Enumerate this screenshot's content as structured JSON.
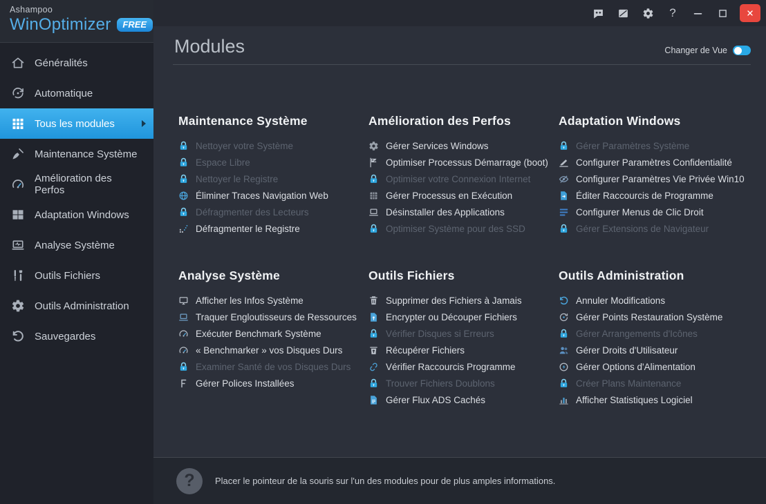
{
  "brand": {
    "company": "Ashampoo",
    "product": "WinOptimizer",
    "badge": "FREE"
  },
  "titlebar": {
    "feedback_icon": "feedback-icon",
    "notes_icon": "notes-icon",
    "settings_icon": "settings-icon",
    "help_label": "?",
    "minimize_icon": "minimize-icon",
    "maximize_icon": "maximize-icon",
    "close_icon": "close-icon"
  },
  "sidebar": {
    "items": [
      {
        "label": "Généralités",
        "icon": "home-icon",
        "selected": false
      },
      {
        "label": "Automatique",
        "icon": "auto-icon",
        "selected": false
      },
      {
        "label": "Tous les modules",
        "icon": "grid-icon",
        "selected": true
      },
      {
        "label": "Maintenance Système",
        "icon": "broom-icon",
        "selected": false
      },
      {
        "label": "Amélioration des Perfos",
        "icon": "gauge-icon",
        "selected": false
      },
      {
        "label": "Adaptation Windows",
        "icon": "windows-icon",
        "selected": false
      },
      {
        "label": "Analyse Système",
        "icon": "laptop-pulse-icon",
        "selected": false
      },
      {
        "label": "Outils Fichiers",
        "icon": "tools-icon",
        "selected": false
      },
      {
        "label": "Outils Administration",
        "icon": "gear-wrench-icon",
        "selected": false
      },
      {
        "label": "Sauvegardes",
        "icon": "undo-arrow-icon",
        "selected": false
      }
    ]
  },
  "header": {
    "title": "Modules",
    "toggle_label": "Changer de Vue",
    "toggle_on": true
  },
  "groups": [
    {
      "title": "Maintenance Système",
      "items": [
        {
          "label": "Nettoyer votre Système",
          "icon": "lock-icon",
          "locked": true
        },
        {
          "label": "Espace Libre",
          "icon": "lock-icon",
          "locked": true
        },
        {
          "label": "Nettoyer le Registre",
          "icon": "lock-icon",
          "locked": true
        },
        {
          "label": "Éliminer Traces Navigation Web",
          "icon": "globe-icon",
          "locked": false
        },
        {
          "label": "Défragmenter des Lecteurs",
          "icon": "lock-icon",
          "locked": true
        },
        {
          "label": "Défragmenter le Registre",
          "icon": "defrag-dots-icon",
          "locked": false
        }
      ]
    },
    {
      "title": "Amélioration des Perfos",
      "items": [
        {
          "label": "Gérer Services Windows",
          "icon": "services-gear-icon",
          "locked": false
        },
        {
          "label": "Optimiser Processus Démarrage (boot)",
          "icon": "checkered-flag-icon",
          "locked": false
        },
        {
          "label": "Optimiser votre Connexion Internet",
          "icon": "lock-icon",
          "locked": true
        },
        {
          "label": "Gérer Processus en Exécution",
          "icon": "processes-grid-icon",
          "locked": false
        },
        {
          "label": "Désinstaller des Applications",
          "icon": "uninstall-laptop-icon",
          "locked": false
        },
        {
          "label": "Optimiser Système pour des SSD",
          "icon": "lock-icon",
          "locked": true
        }
      ]
    },
    {
      "title": "Adaptation Windows",
      "items": [
        {
          "label": "Gérer Paramètres Système",
          "icon": "lock-icon",
          "locked": true
        },
        {
          "label": "Configurer Paramètres Confidentialité",
          "icon": "privacy-pen-icon",
          "locked": false
        },
        {
          "label": "Configurer Paramètres Vie Privée Win10",
          "icon": "eye-slash-icon",
          "locked": false
        },
        {
          "label": "Éditer Raccourcis de Programme",
          "icon": "shortcut-file-icon",
          "locked": false
        },
        {
          "label": "Configurer Menus de Clic Droit",
          "icon": "context-menu-icon",
          "locked": false
        },
        {
          "label": "Gérer Extensions de Navigateur",
          "icon": "lock-icon",
          "locked": true
        }
      ]
    },
    {
      "title": "Analyse Système",
      "items": [
        {
          "label": "Afficher les Infos Système",
          "icon": "monitor-icon",
          "locked": false
        },
        {
          "label": "Traquer Engloutisseurs de Ressources",
          "icon": "resources-laptop-icon",
          "locked": false
        },
        {
          "label": "Exécuter Benchmark Système",
          "icon": "benchmark-gauge-icon",
          "locked": false
        },
        {
          "label": "« Benchmarker » vos Disques Durs",
          "icon": "benchmark-gauge-icon",
          "locked": false
        },
        {
          "label": "Examiner Santé de vos Disques Durs",
          "icon": "lock-icon",
          "locked": true
        },
        {
          "label": "Gérer Polices Installées",
          "icon": "font-f-icon",
          "locked": false
        }
      ]
    },
    {
      "title": "Outils Fichiers",
      "items": [
        {
          "label": "Supprimer des Fichiers à Jamais",
          "icon": "shredder-trash-icon",
          "locked": false
        },
        {
          "label": "Encrypter ou Découper Fichiers",
          "icon": "encrypt-file-icon",
          "locked": false
        },
        {
          "label": "Vérifier Disques si Erreurs",
          "icon": "lock-icon",
          "locked": true
        },
        {
          "label": "Récupérer Fichiers",
          "icon": "restore-trash-icon",
          "locked": false
        },
        {
          "label": "Vérifier Raccourcis Programme",
          "icon": "broken-link-icon",
          "locked": false
        },
        {
          "label": "Trouver Fichiers Doublons",
          "icon": "lock-icon",
          "locked": true
        },
        {
          "label": "Gérer Flux ADS Cachés",
          "icon": "ads-file-icon",
          "locked": false
        }
      ]
    },
    {
      "title": "Outils Administration",
      "items": [
        {
          "label": "Annuler Modifications",
          "icon": "undo-icon",
          "locked": false
        },
        {
          "label": "Gérer Points Restauration Système",
          "icon": "restore-point-icon",
          "locked": false
        },
        {
          "label": "Gérer Arrangements d'Icônes",
          "icon": "lock-icon",
          "locked": true
        },
        {
          "label": "Gérer Droits d'Utilisateur",
          "icon": "users-icon",
          "locked": false
        },
        {
          "label": "Gérer Options d'Alimentation",
          "icon": "power-icon",
          "locked": false
        },
        {
          "label": "Créer Plans Maintenance",
          "icon": "lock-icon",
          "locked": true
        },
        {
          "label": "Afficher Statistiques Logiciel",
          "icon": "bar-chart-icon",
          "locked": false
        }
      ]
    }
  ],
  "footer": {
    "icon_glyph": "?",
    "text": "Placer le pointeur de la souris sur l'un des modules pour de plus amples informations."
  },
  "colors": {
    "accent": "#29A9E6",
    "selected_gradient_top": "#41B2EE",
    "selected_gradient_bottom": "#2095DC",
    "close_button": "#E8473E",
    "lock": "#2EA7E0"
  },
  "icon_colors": {
    "lock-icon": "#2EA7E0",
    "globe-icon": "#4AA3D9",
    "defrag-dots-icon": "#AEB4BD",
    "services-gear-icon": "#9AA1AB",
    "checkered-flag-icon": "#B7BDC6",
    "processes-grid-icon": "#8F96A0",
    "uninstall-laptop-icon": "#B7BDC6",
    "privacy-pen-icon": "#B7BDC6",
    "eye-slash-icon": "#7F98B3",
    "shortcut-file-icon": "#3F9FD8",
    "context-menu-icon": "#3F7FC8",
    "monitor-icon": "#B7BDC6",
    "resources-laptop-icon": "#6F9FC8",
    "benchmark-gauge-icon": "#B7BDC6",
    "font-f-icon": "#B7BDC6",
    "shredder-trash-icon": "#B7BDC6",
    "encrypt-file-icon": "#4AA3D9",
    "restore-trash-icon": "#B7BDC6",
    "broken-link-icon": "#4A9FD4",
    "ads-file-icon": "#4AA3D9",
    "undo-icon": "#4AA3D9",
    "restore-point-icon": "#B7BDC6",
    "users-icon": "#5B8FC0",
    "power-icon": "#B7BDC6",
    "bar-chart-icon": "#8F96A0"
  }
}
